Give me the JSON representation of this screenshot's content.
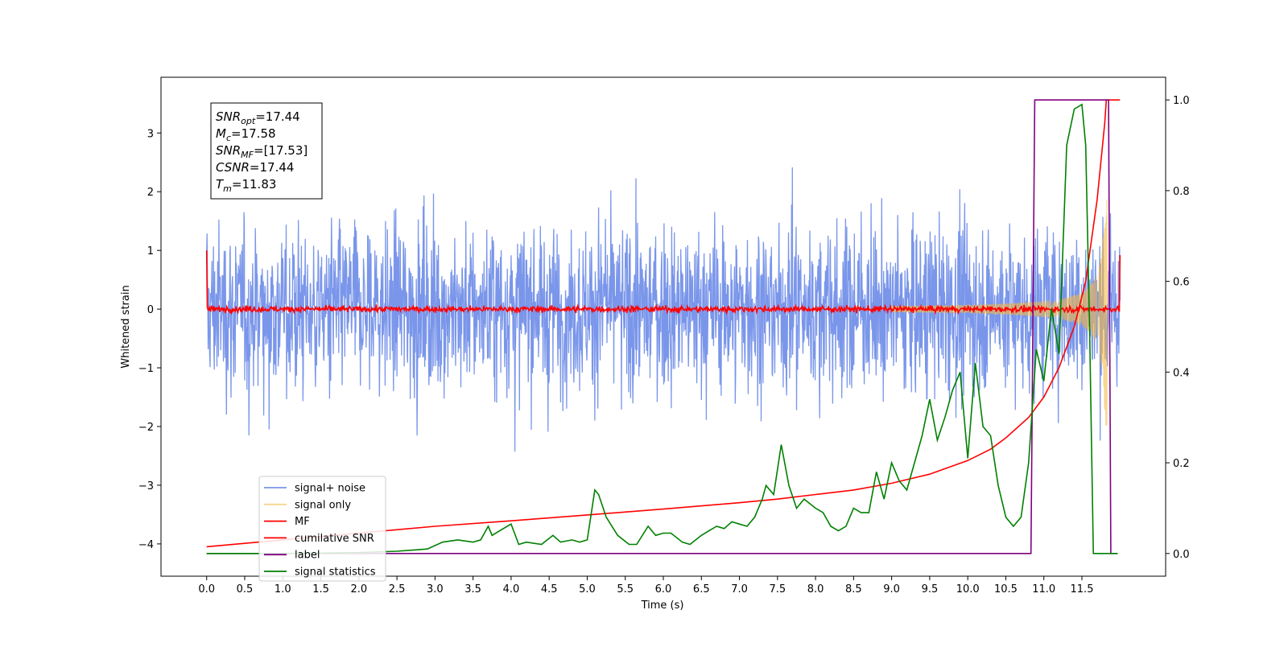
{
  "chart_data": {
    "type": "line",
    "xlabel": "Time (s)",
    "ylabel": "Whitened strain",
    "xlim": [
      -0.6,
      12.6
    ],
    "ylim": [
      -4.55,
      3.95
    ],
    "y2lim": [
      -0.05,
      1.05
    ],
    "xticks": [
      "0.0",
      "0.5",
      "1.0",
      "1.5",
      "2.0",
      "2.5",
      "3.0",
      "3.5",
      "4.0",
      "4.5",
      "5.0",
      "5.5",
      "6.0",
      "6.5",
      "7.0",
      "7.5",
      "8.0",
      "8.5",
      "9.0",
      "9.5",
      "10.0",
      "10.5",
      "11.0",
      "11.5"
    ],
    "xtick_values": [
      0,
      0.5,
      1,
      1.5,
      2,
      2.5,
      3,
      3.5,
      4,
      4.5,
      5,
      5.5,
      6,
      6.5,
      7,
      7.5,
      8,
      8.5,
      9,
      9.5,
      10,
      10.5,
      11,
      11.5
    ],
    "yticks": [
      "3",
      "2",
      "1",
      "0",
      "−1",
      "−2",
      "−3",
      "−4"
    ],
    "ytick_values": [
      3,
      2,
      1,
      0,
      -1,
      -2,
      -3,
      -4
    ],
    "y2ticks": [
      "1.0",
      "0.8",
      "0.6",
      "0.4",
      "0.2",
      "0.0"
    ],
    "y2tick_values": [
      1.0,
      0.8,
      0.6,
      0.4,
      0.2,
      0.0
    ],
    "grid": false,
    "legend_position": "lower-left",
    "annotation": [
      {
        "sym": "SNR",
        "sub": "opt",
        "text": "=17.44"
      },
      {
        "sym": "M",
        "sub": "c",
        "text": "=17.58"
      },
      {
        "sym": "SNR",
        "sub": "MF",
        "text": "=[17.53]"
      },
      {
        "sym": "CSNR",
        "sub": "",
        "text": "=17.44"
      },
      {
        "sym": "T",
        "sub": "m",
        "text": "=11.83"
      }
    ],
    "series": [
      {
        "name": "signal+ noise",
        "color": "#4169e1",
        "axis": "left",
        "kind": "noise",
        "mean": 0.0,
        "envelope": 2.6,
        "t_start": 0.0,
        "t_end": 12.0
      },
      {
        "name": "signal only",
        "color": "#f5b942",
        "axis": "left",
        "kind": "chirp",
        "t_start": 0.0,
        "t_end": 12.0,
        "t_merger": 11.83,
        "peak_amplitude": 2.6
      },
      {
        "name": "MF",
        "color": "#ff0000",
        "axis": "left",
        "kind": "matched_filter",
        "t_start": 0.0,
        "t_end": 12.0,
        "start_value": 1.0,
        "end_value": 0.92,
        "noise_level": 0.06
      },
      {
        "name": "cumilative SNR",
        "color": "#ff0000",
        "axis": "right",
        "x": [
          0.0,
          1.0,
          2.0,
          3.0,
          4.0,
          5.0,
          6.0,
          7.0,
          7.5,
          8.0,
          8.5,
          9.0,
          9.5,
          10.0,
          10.3,
          10.5,
          10.8,
          11.0,
          11.2,
          11.4,
          11.55,
          11.7,
          11.8,
          11.82,
          12.0
        ],
        "y": [
          0.015,
          0.03,
          0.045,
          0.06,
          0.072,
          0.085,
          0.098,
          0.112,
          0.12,
          0.13,
          0.14,
          0.155,
          0.175,
          0.205,
          0.23,
          0.255,
          0.3,
          0.345,
          0.41,
          0.5,
          0.6,
          0.78,
          0.95,
          1.0,
          1.0
        ]
      },
      {
        "name": "label",
        "color": "#800080",
        "axis": "right",
        "x": [
          0.0,
          10.83,
          10.88,
          11.85,
          11.88,
          11.97
        ],
        "y": [
          0.0,
          0.0,
          1.0,
          1.0,
          0.0,
          0.0
        ]
      },
      {
        "name": "signal statistics",
        "color": "#008000",
        "axis": "right",
        "x": [
          0.0,
          1.0,
          2.0,
          2.5,
          2.9,
          3.1,
          3.3,
          3.5,
          3.6,
          3.7,
          3.75,
          3.85,
          4.0,
          4.1,
          4.2,
          4.4,
          4.55,
          4.65,
          4.8,
          4.9,
          5.0,
          5.1,
          5.15,
          5.25,
          5.4,
          5.55,
          5.65,
          5.8,
          5.9,
          6.0,
          6.1,
          6.25,
          6.35,
          6.5,
          6.6,
          6.7,
          6.8,
          6.9,
          7.0,
          7.1,
          7.2,
          7.3,
          7.35,
          7.45,
          7.55,
          7.65,
          7.75,
          7.85,
          8.0,
          8.1,
          8.2,
          8.3,
          8.4,
          8.5,
          8.6,
          8.7,
          8.8,
          8.9,
          9.0,
          9.1,
          9.2,
          9.3,
          9.4,
          9.5,
          9.6,
          9.7,
          9.8,
          9.9,
          10.0,
          10.1,
          10.2,
          10.3,
          10.4,
          10.5,
          10.6,
          10.7,
          10.8,
          10.9,
          11.0,
          11.1,
          11.2,
          11.3,
          11.4,
          11.5,
          11.55,
          11.6,
          11.65,
          11.7,
          11.75,
          11.8,
          11.85,
          11.9,
          11.97
        ],
        "y": [
          0.0,
          0.0,
          0.002,
          0.005,
          0.01,
          0.025,
          0.03,
          0.025,
          0.03,
          0.06,
          0.04,
          0.05,
          0.065,
          0.02,
          0.025,
          0.02,
          0.04,
          0.025,
          0.03,
          0.025,
          0.03,
          0.14,
          0.13,
          0.08,
          0.04,
          0.02,
          0.02,
          0.06,
          0.04,
          0.045,
          0.045,
          0.025,
          0.02,
          0.04,
          0.05,
          0.06,
          0.055,
          0.07,
          0.065,
          0.06,
          0.08,
          0.12,
          0.15,
          0.13,
          0.24,
          0.15,
          0.1,
          0.12,
          0.1,
          0.09,
          0.06,
          0.05,
          0.06,
          0.1,
          0.09,
          0.09,
          0.18,
          0.12,
          0.2,
          0.16,
          0.14,
          0.2,
          0.26,
          0.34,
          0.25,
          0.3,
          0.36,
          0.4,
          0.21,
          0.42,
          0.28,
          0.26,
          0.15,
          0.08,
          0.06,
          0.08,
          0.2,
          0.45,
          0.38,
          0.54,
          0.44,
          0.9,
          0.98,
          0.99,
          0.9,
          0.5,
          0.0,
          0.0,
          0.0,
          0.0,
          0.0,
          0.0,
          0.0
        ]
      }
    ]
  }
}
